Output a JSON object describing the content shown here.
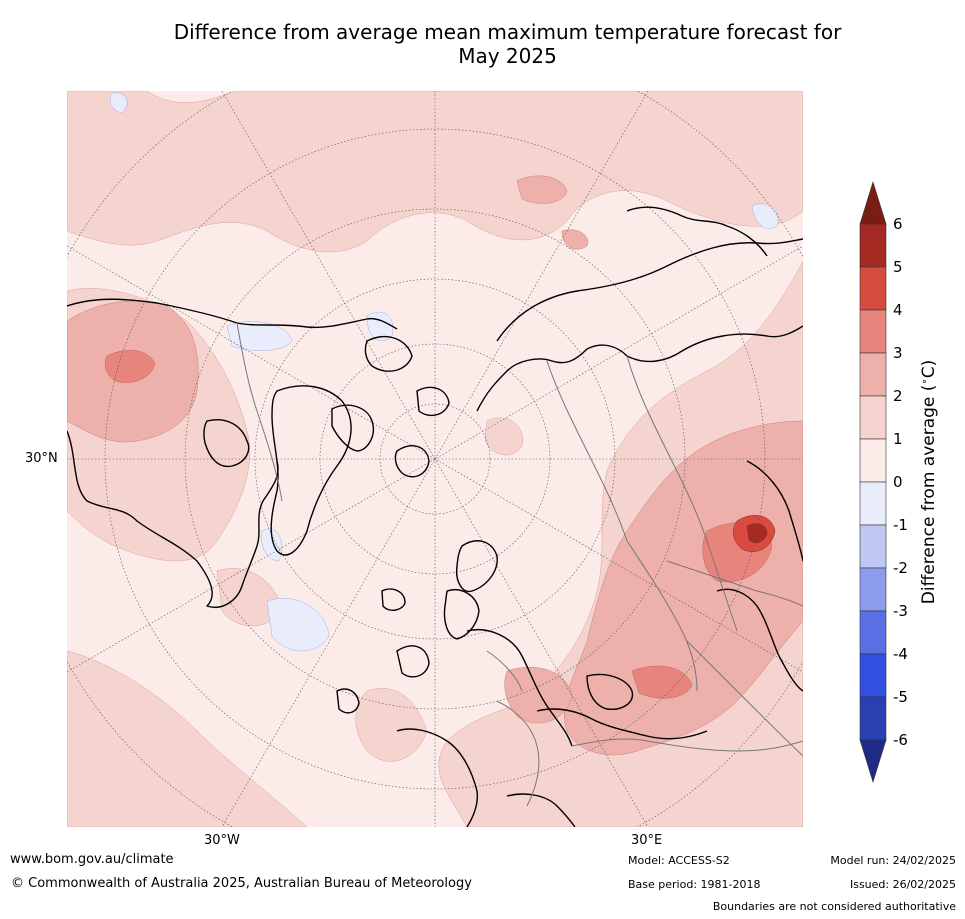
{
  "title_line1": "Difference from average mean maximum temperature forecast for",
  "title_line2": "May 2025",
  "map": {
    "lat_label": "30°N",
    "lon_labels": [
      "30°W",
      "30°E"
    ]
  },
  "colorbar": {
    "label_prefix": "Difference from average (",
    "label_unit": "°C",
    "label_suffix": ")",
    "ticks": [
      "6",
      "5",
      "4",
      "3",
      "2",
      "1",
      "0",
      "-1",
      "-2",
      "-3",
      "-4",
      "-5",
      "-6"
    ],
    "colors": [
      "#a52a24",
      "#d84c40",
      "#e7857c",
      "#eeb0aa",
      "#f5d3cf",
      "#fbecea",
      "#e9ecfb",
      "#c0c7f2",
      "#8c9bec",
      "#5a6fe4",
      "#3050e0",
      "#2a3fb0",
      "#1f2a84"
    ],
    "over_color": "#7a1d15",
    "under_color": "#1f2a84"
  },
  "footer": {
    "url": "www.bom.gov.au/climate",
    "copyright": "© Commonwealth of Australia 2025, Australian Bureau of Meteorology",
    "model": "Model: ACCESS-S2",
    "base_period": "Base period: 1981-2018",
    "model_run": "Model run: 24/02/2025",
    "issued": "Issued: 26/02/2025",
    "disclaimer": "Boundaries are not considered authoritative"
  }
}
